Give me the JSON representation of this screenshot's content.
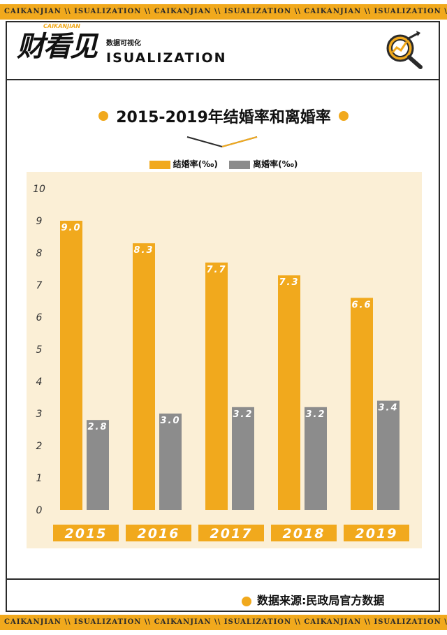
{
  "bands": {
    "text": "CAIKANJIAN \\\\ ISUALIZATION \\\\ CAIKANJIAN \\\\ ISUALIZATION \\\\ CAIKANJIAN \\\\ ISUALIZATION \\\\ CAIKAN"
  },
  "header": {
    "logo_cn": "财看见",
    "logo_en": "CAIKANJIAN",
    "subtitle_cn": "数据可视化",
    "subtitle_en": "ISUALIZATION",
    "icon": "chart-magnifier-icon"
  },
  "chart_data": {
    "type": "bar",
    "title": "2015-2019年结婚率和离婚率",
    "categories": [
      "2015",
      "2016",
      "2017",
      "2018",
      "2019"
    ],
    "series": [
      {
        "name": "结婚率(‰)",
        "color": "#F1A91D",
        "values": [
          9.0,
          8.3,
          7.7,
          7.3,
          6.6
        ]
      },
      {
        "name": "离婚率(‰)",
        "color": "#8C8C8C",
        "values": [
          2.8,
          3.0,
          3.2,
          3.2,
          3.4
        ]
      }
    ],
    "ylim": [
      0,
      10
    ],
    "yticks": [
      "0",
      "1",
      "2",
      "3",
      "4",
      "5",
      "6",
      "7",
      "8",
      "9",
      "10"
    ],
    "data_labels": [
      [
        "9.0",
        "8.3",
        "7.7",
        "7.3",
        "6.6"
      ],
      [
        "2.8",
        "3.0",
        "3.2",
        "3.2",
        "3.4"
      ]
    ],
    "legend": "top-center",
    "grid": false,
    "background_color": "#FBEFD6"
  },
  "footer": {
    "source": "数据来源:民政局官方数据"
  }
}
